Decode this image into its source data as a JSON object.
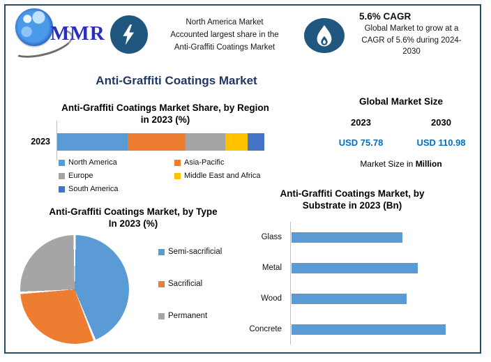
{
  "brand": {
    "name": "MMR"
  },
  "header": {
    "highlight": {
      "icon": "lightning-icon",
      "lines": [
        "North America Market",
        "Accounted largest share in the",
        "Anti-Graffiti Coatings Market"
      ]
    },
    "cagr": {
      "icon": "flame-icon",
      "title": "5.6% CAGR",
      "lines": [
        "Global Market to grow at a",
        "CAGR of 5.6% during 2024-",
        "2030"
      ]
    }
  },
  "main_title": "Anti-Graffiti Coatings Market",
  "market_size": {
    "title": "Global Market Size",
    "columns": [
      {
        "year": "2023",
        "value": "USD 75.78"
      },
      {
        "year": "2030",
        "value": "USD 110.98"
      }
    ],
    "note_prefix": "Market Size in",
    "note_emphasis": "Million"
  },
  "colors": {
    "frame": "#264E66",
    "badge": "#1F577F",
    "title_navy": "#1F3864",
    "value_blue": "#0070C0",
    "series_blue": "#5B9BD5",
    "series_orange": "#ED7D31",
    "series_gray": "#A5A5A5",
    "series_yellow": "#FFC000",
    "series_darkblue": "#4472C4"
  },
  "chart_data": [
    {
      "type": "bar",
      "variant": "stacked-horizontal",
      "title": "Anti-Graffiti Coatings Market Share, by Region in 2023 (%)",
      "title_lines": [
        "Anti-Graffiti Coatings Market Share, by Region",
        "in 2023 (%)"
      ],
      "categories": [
        "2023"
      ],
      "series": [
        {
          "name": "North America",
          "values": [
            34
          ],
          "color": "#5B9BD5"
        },
        {
          "name": "Asia-Pacific",
          "values": [
            28
          ],
          "color": "#ED7D31"
        },
        {
          "name": "Europe",
          "values": [
            19
          ],
          "color": "#A5A5A5"
        },
        {
          "name": "Middle East and Africa",
          "values": [
            11
          ],
          "color": "#FFC000"
        },
        {
          "name": "South America",
          "values": [
            8
          ],
          "color": "#4472C4"
        }
      ],
      "xlim": [
        0,
        100
      ],
      "units": "%",
      "legend_position": "bottom",
      "grid": false
    },
    {
      "type": "pie",
      "title": "Anti-Graffiti Coatings Market, by Type In 2023 (%)",
      "title_lines": [
        "Anti-Graffiti Coatings Market, by Type",
        "In 2023 (%)"
      ],
      "slices": [
        {
          "name": "Semi-sacrificial",
          "value": 44,
          "color": "#5B9BD5"
        },
        {
          "name": "Sacrificial",
          "value": 30,
          "color": "#ED7D31"
        },
        {
          "name": "Permanent",
          "value": 26,
          "color": "#A5A5A5"
        }
      ],
      "start_angle_deg": 0,
      "units": "%",
      "legend_position": "right"
    },
    {
      "type": "bar",
      "variant": "horizontal",
      "title": "Anti-Graffiti Coatings Market, by Substrate in 2023 (Bn)",
      "title_lines": [
        "Anti-Graffiti Coatings Market, by",
        "Substrate in 2023 (Bn)"
      ],
      "categories": [
        "Glass",
        "Metal",
        "Wood",
        "Concrete"
      ],
      "values": [
        0.59,
        0.67,
        0.61,
        0.82
      ],
      "xlim": [
        0,
        1
      ],
      "color": "#5B9BD5",
      "units": "Bn",
      "grid": false,
      "axis_ticks_visible": false
    }
  ]
}
